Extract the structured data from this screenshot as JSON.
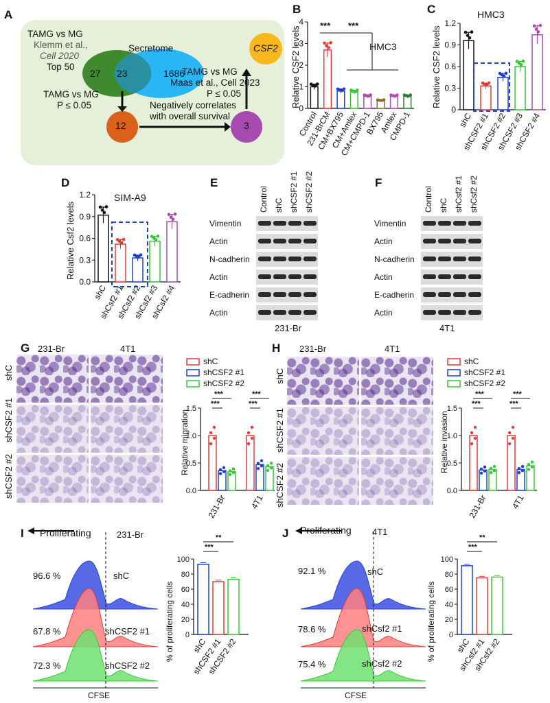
{
  "colors": {
    "shC": "#e53935",
    "sh1": "#1e3fd6",
    "sh2": "#35c935",
    "venn_green": "#3f8a2e",
    "venn_blue": "#29b6f6",
    "venn_overlap": "#2a8fa0",
    "orange": "#f9b71c",
    "brown": "#d9611c",
    "purple": "#a84bb0",
    "panelA_bg": "#e6f0d8",
    "dash": "#1d3fcf"
  },
  "panels": {
    "A": "A",
    "B": "B",
    "C": "C",
    "D": "D",
    "E": "E",
    "F": "F",
    "G": "G",
    "H": "H",
    "I": "I",
    "J": "J"
  },
  "panelA": {
    "label1_line1": "TAMG vs MG",
    "label1_line2": "Klemm et al.,",
    "label1_line3": "Cell 2020",
    "label1_line4": "Top 50",
    "secretome": "Secretome",
    "n_left": "27",
    "n_overlap": "23",
    "n_right": "1686",
    "label2_line1": "TAMG vs MG",
    "label2_line2": "Maas et al., Cell 2023",
    "label2_line3": "P ≤ 0.05",
    "label3_line1": "TAMG vs MG",
    "label3_line2": "P ≤ 0.05",
    "n12": "12",
    "n3": "3",
    "corr_line1": "Negatively correlates",
    "corr_line2": "with overall survival",
    "gene": "CSF2"
  },
  "panelB": {
    "title": "HMC3",
    "ylabel": "Relative CSF2 levels",
    "sig1": "***",
    "sig2": "***"
  },
  "panelC": {
    "title": "HMC3",
    "ylabel": "Relative CSF2 levels"
  },
  "panelD": {
    "title": "SIM-A9",
    "ylabel": "Relative Csf2 levels"
  },
  "panelE": {
    "cols": [
      "Control",
      "shC",
      "shCSF2 #1",
      "shCSF2 #2"
    ],
    "rows": [
      "Vimentin",
      "Actin",
      "N-cadherin",
      "Actin",
      "E-cadherin",
      "Actin"
    ],
    "cell": "231-Br"
  },
  "panelF": {
    "cols": [
      "Control",
      "shC",
      "shCsf2 #1",
      "shCsf2 #2"
    ],
    "rows": [
      "Vimentin",
      "Actin",
      "N-cadherin",
      "Actin",
      "E-cadherin",
      "Actin"
    ],
    "cell": "4T1"
  },
  "panelG": {
    "col1": "231-Br",
    "col2": "4T1",
    "rows": [
      "shC",
      "shCSF2 #1",
      "shCSF2 #2"
    ],
    "legend": [
      "shC",
      "shCSF2 #1",
      "shCSF2 #2"
    ],
    "ylabel": "Relative migration",
    "sig": "***"
  },
  "panelH": {
    "col1": "231-Br",
    "col2": "4T1",
    "rows": [
      "shC",
      "shCSF2 #1",
      "shCSF2 #2"
    ],
    "legend": [
      "shC",
      "shCSF2 #1",
      "shCSF2 #2"
    ],
    "ylabel": "Relative invasion",
    "sig": "***"
  },
  "panelI": {
    "arrow": "Proliferating",
    "cell": "231-Br",
    "pcts": [
      "96.6 %",
      "67.8 %",
      "72.3 %"
    ],
    "names": [
      "shC",
      "shCSF2 #1",
      "shCSF2 #2"
    ],
    "xlabel": "CFSE",
    "ylabel": "% of proliferating cells",
    "sig1": "***",
    "sig2": "**"
  },
  "panelJ": {
    "arrow": "Proliferating",
    "cell": "4T1",
    "pcts": [
      "92.1 %",
      "78.6 %",
      "75.4 %"
    ],
    "names": [
      "shC",
      "shCsf2 #1",
      "shCsf2 #2"
    ],
    "xlabel": "CFSE",
    "ylabel": "% of proliferating cells",
    "sig1": "***",
    "sig2": "**"
  },
  "chart_data": [
    {
      "type": "bar",
      "title": "HMC3",
      "ylabel": "Relative CSF2 levels",
      "ylim": [
        0,
        4
      ],
      "categories": [
        "Control",
        "231-BrCM",
        "CM+BX795",
        "CM+Amlex",
        "CM+CMPD-1",
        "BX795",
        "Amlex",
        "CMPD-1"
      ],
      "values": [
        1.0,
        2.7,
        0.8,
        0.75,
        0.55,
        0.35,
        0.55,
        0.55
      ],
      "yticks": [
        "0",
        "1",
        "2",
        "3",
        "4"
      ]
    },
    {
      "type": "bar",
      "title": "HMC3",
      "ylabel": "Relative CSF2 levels",
      "ylim": [
        0,
        1.2
      ],
      "categories": [
        "shC",
        "shCSF2 #1",
        "shCSF2 #2",
        "shCSF2 #3",
        "shCSF2 #4"
      ],
      "values": [
        0.96,
        0.33,
        0.45,
        0.6,
        1.04
      ],
      "yticks": [
        "0",
        "0.3",
        "0.6",
        "0.9",
        "1.2"
      ]
    },
    {
      "type": "bar",
      "title": "SIM-A9",
      "ylabel": "Relative Csf2 levels",
      "ylim": [
        0,
        1.2
      ],
      "categories": [
        "shC",
        "shCsf2 #1",
        "shCsf2 #2",
        "shCsf2 #3",
        "shCsf2 #4"
      ],
      "values": [
        0.92,
        0.52,
        0.33,
        0.56,
        0.83
      ],
      "yticks": [
        "0.0",
        "0.3",
        "0.6",
        "0.9",
        "1.2"
      ]
    },
    {
      "type": "bar",
      "ylabel": "Relative migration",
      "ylim": [
        0,
        1.5
      ],
      "categories": [
        "231-Br",
        "4T1"
      ],
      "series": [
        {
          "name": "shC",
          "values": [
            1.0,
            1.0
          ]
        },
        {
          "name": "shCSF2 #1",
          "values": [
            0.36,
            0.47
          ]
        },
        {
          "name": "shCSF2 #2",
          "values": [
            0.34,
            0.43
          ]
        }
      ],
      "yticks": [
        "0.0",
        "0.5",
        "1.0",
        "1.5"
      ]
    },
    {
      "type": "bar",
      "ylabel": "Relative invasion",
      "ylim": [
        0,
        1.5
      ],
      "categories": [
        "231-Br",
        "4T1"
      ],
      "series": [
        {
          "name": "shC",
          "values": [
            1.0,
            1.0
          ]
        },
        {
          "name": "shCSF2 #1",
          "values": [
            0.37,
            0.38
          ]
        },
        {
          "name": "shCSF2 #2",
          "values": [
            0.38,
            0.45
          ]
        }
      ],
      "yticks": [
        "0.0",
        "0.5",
        "1.0",
        "1.5"
      ]
    },
    {
      "type": "bar",
      "ylabel": "% of proliferating cells",
      "ylim": [
        0,
        100
      ],
      "categories": [
        "shC",
        "shCSF2 #1",
        "shCSF2 #2"
      ],
      "values": [
        93,
        70,
        73
      ],
      "yticks": [
        "0",
        "20",
        "40",
        "60",
        "80",
        "100"
      ]
    },
    {
      "type": "bar",
      "ylabel": "% of proliferating cells",
      "ylim": [
        0,
        100
      ],
      "categories": [
        "shC",
        "shCsf2 #1",
        "shCsf2 #2"
      ],
      "values": [
        91,
        75,
        76
      ],
      "yticks": [
        "0",
        "20",
        "40",
        "60",
        "80",
        "100"
      ]
    }
  ]
}
